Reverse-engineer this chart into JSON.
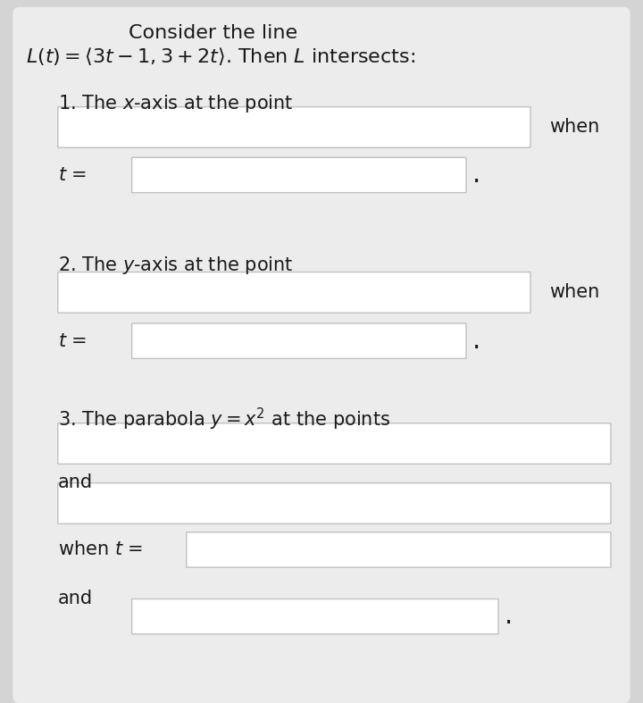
{
  "outer_bg": "#d4d4d4",
  "card_bg": "#ececec",
  "box_face": "#ffffff",
  "box_edge": "#c0c0c0",
  "text_color": "#1a1a1a",
  "title_line1": "Consider the line",
  "title_line2_a": "$L(t) = \\langle 3t - 1, 3 + 2t\\rangle$. Then $L$ intersects:",
  "s1_label": "1. The $x$-axis at the point",
  "s1_when": "when",
  "s1_t": "$t$ =",
  "s2_label": "2. The $y$-axis at the point",
  "s2_when": "when",
  "s2_t": "$t$ =",
  "s3_label": "3. The parabola $y = x^2$ at the points",
  "s3_and1": "and",
  "s3_when_t": "when $t$ =",
  "s3_and2": "and",
  "dot": ".",
  "font_size": 15,
  "font_size_title": 16
}
